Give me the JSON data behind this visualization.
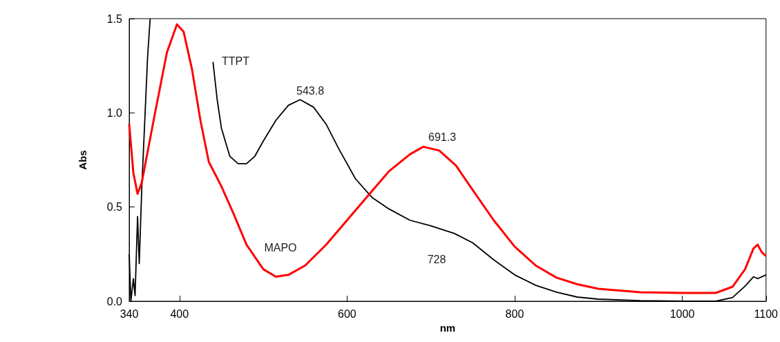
{
  "chart_data": {
    "type": "line",
    "xlabel": "nm",
    "ylabel": "Abs",
    "xlim": [
      340,
      1100
    ],
    "xticks": [
      340,
      400,
      600,
      800,
      1000,
      1100
    ],
    "ylim": [
      0,
      1.5
    ],
    "yticks": [
      {
        "value": 0,
        "label": "0.0"
      },
      {
        "value": 0.5,
        "label": "0.5"
      },
      {
        "value": 1,
        "label": "1.0"
      },
      {
        "value": 1.5,
        "label": "1.5"
      }
    ],
    "grid": false,
    "marker": "none",
    "line_style": "solid",
    "series": [
      {
        "color": "#000000",
        "x": [
          340,
          342,
          345,
          347,
          350,
          352,
          355,
          358,
          362,
          365,
          436,
          440,
          445,
          450,
          460,
          470,
          480,
          490,
          500,
          515,
          530,
          544,
          560,
          575,
          590,
          610,
          630,
          650,
          675,
          700,
          728,
          750,
          775,
          800,
          825,
          850,
          875,
          900,
          950,
          1000,
          1040,
          1060,
          1075,
          1085,
          1090,
          1100
        ],
        "values": [
          0.25,
          0.0,
          0.12,
          0.03,
          0.45,
          0.2,
          0.6,
          0.9,
          1.3,
          1.5,
          null,
          1.27,
          1.07,
          0.92,
          0.77,
          0.73,
          0.73,
          0.77,
          0.85,
          0.96,
          1.04,
          1.07,
          1.03,
          0.94,
          0.81,
          0.65,
          0.55,
          0.49,
          0.43,
          0.4,
          0.36,
          0.31,
          0.22,
          0.14,
          0.085,
          0.048,
          0.022,
          0.011,
          0.003,
          0.0,
          0.0,
          0.02,
          0.08,
          0.13,
          0.12,
          0.14
        ]
      },
      {
        "color": "#ff0000",
        "x": [
          340,
          345,
          350,
          355,
          370,
          385,
          397,
          405,
          415,
          425,
          435,
          450,
          465,
          480,
          500,
          515,
          530,
          550,
          575,
          600,
          625,
          650,
          675,
          691,
          710,
          730,
          750,
          775,
          800,
          825,
          850,
          875,
          900,
          950,
          1000,
          1040,
          1060,
          1075,
          1085,
          1090,
          1095,
          1100
        ],
        "values": [
          0.94,
          0.68,
          0.57,
          0.63,
          0.98,
          1.32,
          1.47,
          1.43,
          1.23,
          0.96,
          0.74,
          0.61,
          0.46,
          0.3,
          0.17,
          0.13,
          0.14,
          0.19,
          0.3,
          0.43,
          0.56,
          0.69,
          0.78,
          0.82,
          0.8,
          0.72,
          0.59,
          0.43,
          0.29,
          0.19,
          0.125,
          0.09,
          0.066,
          0.048,
          0.044,
          0.044,
          0.077,
          0.17,
          0.28,
          0.3,
          0.26,
          0.24
        ]
      }
    ],
    "annotations": [
      "TTPT",
      "543.8",
      "691.3",
      "728",
      "MAPO"
    ]
  }
}
